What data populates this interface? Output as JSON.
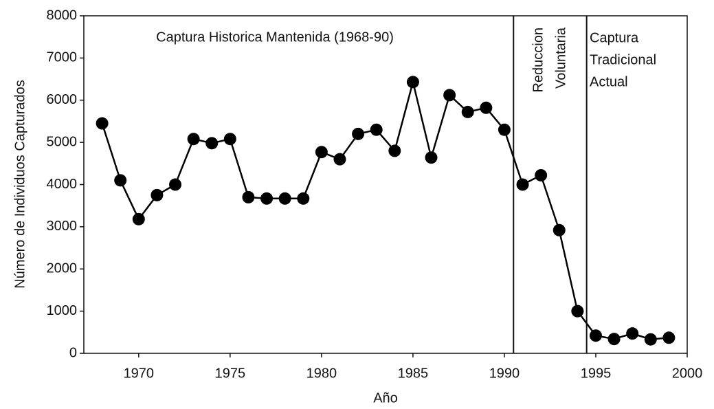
{
  "chart_data": {
    "type": "line",
    "xlabel": "Año",
    "ylabel": "Número de Individuos Capturados",
    "x": [
      1968,
      1969,
      1970,
      1971,
      1972,
      1973,
      1974,
      1975,
      1976,
      1977,
      1978,
      1979,
      1980,
      1981,
      1982,
      1983,
      1984,
      1985,
      1986,
      1987,
      1988,
      1989,
      1990,
      1991,
      1992,
      1993,
      1994,
      1995,
      1996,
      1997,
      1998,
      1999
    ],
    "series": [
      {
        "color": "#000000",
        "values": [
          5450,
          4100,
          3180,
          3750,
          4000,
          5080,
          4980,
          5080,
          3700,
          3670,
          3670,
          3670,
          4770,
          4600,
          5200,
          5300,
          4800,
          6430,
          4640,
          6120,
          5720,
          5820,
          5300,
          4000,
          4220,
          2920,
          1000,
          420,
          340,
          470,
          330,
          370
        ]
      }
    ],
    "xlim": [
      1967,
      2000
    ],
    "xticks": [
      1970,
      1975,
      1980,
      1985,
      1990,
      1995,
      2000
    ],
    "ylim": [
      0,
      8000
    ],
    "yticks": [
      0,
      1000,
      2000,
      3000,
      4000,
      5000,
      6000,
      7000,
      8000
    ],
    "vlines": [
      1990.5,
      1994.5
    ],
    "annotations": [
      {
        "lines": [
          "Captura Historica Mantenida (1968-90)"
        ]
      },
      {
        "lines": [
          "Reduccion",
          "Voluntaria"
        ]
      },
      {
        "lines": [
          "Captura",
          "Tradicional",
          "Actual"
        ]
      }
    ]
  }
}
